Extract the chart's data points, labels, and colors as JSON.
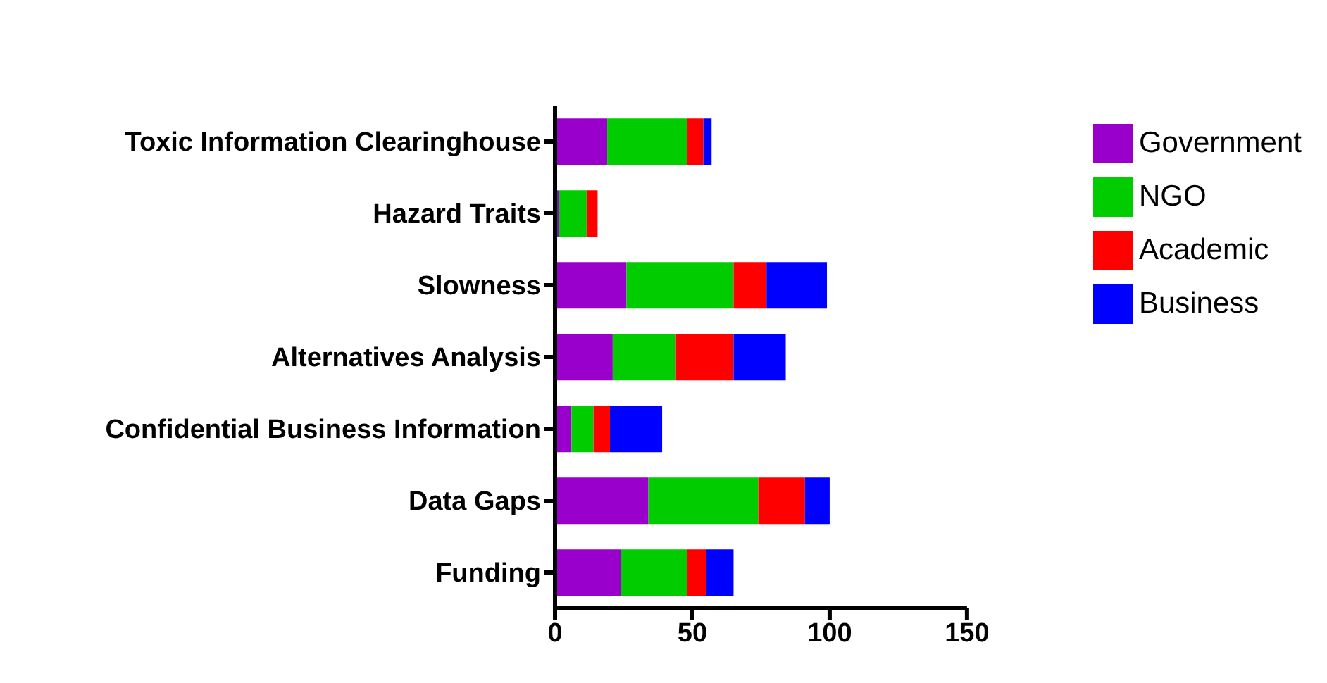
{
  "chart_data": {
    "type": "bar",
    "orientation": "horizontal",
    "stacked": true,
    "categories": [
      "Toxic Information Clearinghouse",
      "Hazard Traits",
      "Slowness",
      "Alternatives Analysis",
      "Confidential Business Information",
      "Data Gaps",
      "Funding"
    ],
    "series": [
      {
        "name": "Government",
        "color": "#9900cc",
        "values": [
          19,
          1.5,
          26,
          21,
          6,
          34,
          24
        ]
      },
      {
        "name": "NGO",
        "color": "#00cc00",
        "values": [
          29,
          10,
          39,
          23,
          8,
          40,
          24
        ]
      },
      {
        "name": "Academic",
        "color": "#ff0000",
        "values": [
          6,
          4,
          12,
          21,
          6,
          17,
          7
        ]
      },
      {
        "name": "Business",
        "color": "#0000ff",
        "values": [
          3,
          0,
          22,
          19,
          19,
          9,
          10
        ]
      }
    ],
    "xlim": [
      0,
      150
    ],
    "xticks": [
      0,
      50,
      100,
      150
    ],
    "grid": false,
    "legend": "top right"
  }
}
